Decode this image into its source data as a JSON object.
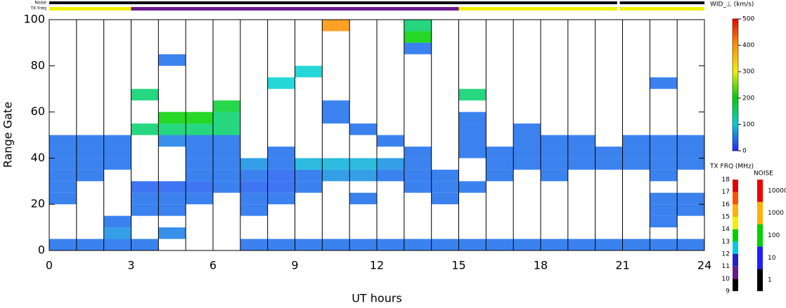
{
  "chart_data": {
    "type": "heatmap",
    "xlabel": "UT hours",
    "ylabel": "Range Gate",
    "xlim": [
      0,
      24
    ],
    "xticks": [
      0,
      3,
      6,
      9,
      12,
      15,
      18,
      21,
      24
    ],
    "ylim": [
      0,
      100
    ],
    "yticks": [
      0,
      20,
      40,
      60,
      80,
      100
    ],
    "x": [
      0,
      1,
      2,
      3,
      4,
      5,
      6,
      7,
      8,
      9,
      10,
      11,
      12,
      13,
      14,
      15,
      16,
      17,
      18,
      19,
      20,
      21,
      22,
      23,
      24
    ],
    "y": [
      0,
      5,
      10,
      15,
      20,
      25,
      30,
      35,
      40,
      45,
      50,
      55,
      60,
      65,
      70,
      75,
      80,
      85,
      90,
      95,
      100
    ],
    "values": [
      [
        40,
        40,
        40,
        40,
        null,
        null,
        null,
        40,
        40,
        40,
        40,
        40,
        40,
        40,
        40,
        40,
        40,
        40,
        40,
        40,
        40,
        40,
        40,
        40
      ],
      [
        null,
        null,
        60,
        null,
        50,
        null,
        null,
        null,
        null,
        null,
        null,
        null,
        null,
        null,
        null,
        null,
        null,
        null,
        null,
        null,
        null,
        null,
        null,
        null
      ],
      [
        null,
        null,
        40,
        null,
        null,
        null,
        null,
        null,
        null,
        null,
        null,
        null,
        null,
        null,
        null,
        null,
        null,
        null,
        null,
        null,
        null,
        null,
        40,
        null
      ],
      [
        null,
        null,
        null,
        40,
        40,
        null,
        null,
        40,
        null,
        null,
        null,
        null,
        null,
        null,
        null,
        null,
        null,
        null,
        null,
        null,
        null,
        null,
        40,
        40
      ],
      [
        40,
        null,
        null,
        40,
        40,
        40,
        null,
        40,
        40,
        null,
        null,
        40,
        null,
        null,
        40,
        null,
        null,
        null,
        null,
        null,
        null,
        null,
        40,
        40
      ],
      [
        40,
        null,
        null,
        30,
        30,
        30,
        40,
        30,
        30,
        40,
        null,
        null,
        null,
        40,
        40,
        40,
        null,
        null,
        null,
        null,
        null,
        null,
        null,
        null
      ],
      [
        40,
        40,
        null,
        null,
        null,
        40,
        40,
        40,
        30,
        40,
        60,
        60,
        40,
        40,
        40,
        null,
        40,
        null,
        40,
        null,
        null,
        null,
        40,
        null
      ],
      [
        40,
        40,
        40,
        null,
        null,
        40,
        40,
        60,
        40,
        80,
        80,
        80,
        60,
        40,
        null,
        null,
        40,
        40,
        40,
        40,
        40,
        40,
        40,
        40
      ],
      [
        40,
        40,
        40,
        null,
        null,
        40,
        40,
        null,
        40,
        null,
        null,
        null,
        null,
        40,
        null,
        40,
        40,
        40,
        40,
        40,
        40,
        40,
        40,
        40
      ],
      [
        40,
        40,
        40,
        null,
        50,
        40,
        40,
        null,
        null,
        null,
        null,
        null,
        40,
        null,
        null,
        40,
        null,
        40,
        40,
        40,
        null,
        40,
        40,
        40
      ],
      [
        null,
        null,
        null,
        150,
        150,
        150,
        150,
        null,
        null,
        null,
        null,
        40,
        null,
        null,
        null,
        40,
        null,
        40,
        null,
        null,
        null,
        null,
        null,
        null
      ],
      [
        null,
        null,
        null,
        null,
        200,
        200,
        150,
        null,
        null,
        null,
        40,
        null,
        null,
        null,
        null,
        40,
        null,
        null,
        null,
        null,
        null,
        null,
        null,
        null
      ],
      [
        null,
        null,
        null,
        null,
        null,
        null,
        180,
        null,
        null,
        null,
        40,
        null,
        null,
        null,
        null,
        null,
        null,
        null,
        null,
        null,
        null,
        null,
        null,
        null
      ],
      [
        null,
        null,
        null,
        150,
        null,
        null,
        null,
        null,
        null,
        null,
        null,
        null,
        null,
        null,
        null,
        150,
        null,
        null,
        null,
        null,
        null,
        null,
        null,
        null
      ],
      [
        null,
        null,
        null,
        null,
        null,
        null,
        null,
        null,
        100,
        null,
        null,
        null,
        null,
        null,
        null,
        null,
        null,
        null,
        null,
        null,
        null,
        null,
        40,
        null
      ],
      [
        null,
        null,
        null,
        null,
        null,
        null,
        null,
        null,
        null,
        100,
        null,
        null,
        null,
        null,
        null,
        null,
        null,
        null,
        null,
        null,
        null,
        null,
        null,
        null
      ],
      [
        null,
        null,
        null,
        null,
        40,
        null,
        null,
        null,
        null,
        null,
        null,
        null,
        null,
        null,
        null,
        null,
        null,
        null,
        null,
        null,
        null,
        null,
        null,
        null
      ],
      [
        null,
        null,
        null,
        null,
        null,
        null,
        null,
        null,
        null,
        null,
        null,
        null,
        null,
        40,
        null,
        null,
        null,
        null,
        null,
        null,
        null,
        null,
        null,
        null
      ],
      [
        null,
        null,
        null,
        null,
        null,
        null,
        null,
        null,
        null,
        null,
        null,
        null,
        null,
        200,
        null,
        null,
        null,
        null,
        null,
        null,
        null,
        null,
        null,
        null
      ],
      [
        null,
        null,
        null,
        null,
        null,
        null,
        null,
        null,
        null,
        null,
        400,
        null,
        null,
        150,
        null,
        null,
        null,
        null,
        null,
        null,
        null,
        null,
        null,
        null
      ]
    ],
    "width_scale": {
      "title": "WID_⊥ (km/s)",
      "lim": [
        0,
        500
      ],
      "ticks": [
        0,
        100,
        200,
        300,
        400,
        500
      ],
      "colors": [
        "#2a2aff",
        "#00d0d0",
        "#00d000",
        "#f0f000",
        "#ff9000",
        "#ee0000"
      ]
    },
    "freq_scale": {
      "title": "TX FRQ (MHz)",
      "lim": [
        9,
        18
      ],
      "ticks": [
        9,
        10,
        11,
        12,
        13,
        14,
        15,
        16,
        17,
        18
      ],
      "colors": [
        "#000000",
        "#6a1a8a",
        "#2020d0",
        "#00c8e8",
        "#00d000",
        "#f0f000",
        "#ffb000",
        "#ff5000",
        "#e00000"
      ]
    },
    "noise_scale": {
      "title": "NOISE",
      "ticks": [
        1,
        10,
        100,
        1000,
        10000
      ],
      "colors": [
        "#000000",
        "#2020ff",
        "#00d000",
        "#ffb000",
        "#ee0000"
      ]
    },
    "noise_label": "Noise",
    "freq_label": "TX Freq",
    "noise": [
      {
        "start": 0,
        "end": 20.8,
        "value": 1
      },
      {
        "start": 20.9,
        "end": 24,
        "value": 1
      }
    ],
    "tx_freq": [
      {
        "start": 0,
        "end": 3,
        "value": 14.5
      },
      {
        "start": 3,
        "end": 15,
        "value": 10.5
      },
      {
        "start": 15,
        "end": 20.8,
        "value": 14.5
      },
      {
        "start": 20.9,
        "end": 24,
        "value": 14.5
      }
    ]
  }
}
